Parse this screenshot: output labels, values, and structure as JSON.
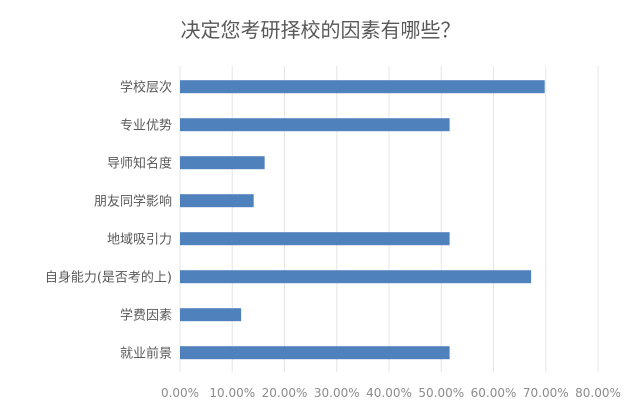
{
  "chart_data": {
    "type": "bar",
    "orientation": "horizontal",
    "title": "决定您考研择校的因素有哪些？",
    "categories": [
      "学校层次",
      "专业优势",
      "导师知名度",
      "朋友同学影响",
      "地域吸引力",
      "自身能力(是否考的上)",
      "学费因素",
      "就业前景"
    ],
    "values": [
      69.8,
      51.6,
      16.2,
      14.1,
      51.6,
      67.2,
      11.7,
      51.6
    ],
    "xlim": [
      0,
      80
    ],
    "xticks": [
      "0.00%",
      "10.00%",
      "20.00%",
      "30.00%",
      "40.00%",
      "50.00%",
      "60.00%",
      "70.00%",
      "80.00%"
    ],
    "grid": true,
    "legend": "none",
    "bar_color": "#4f81bd"
  }
}
